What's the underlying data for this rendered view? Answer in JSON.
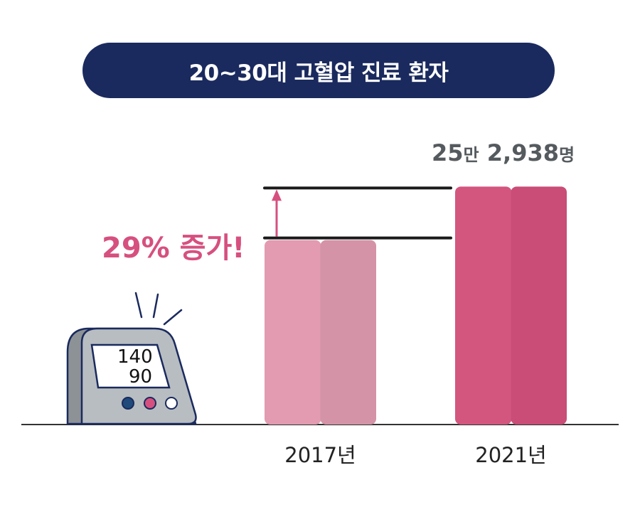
{
  "title": "20~30대 고혈압 진료 환자",
  "increase_label": "29% 증가!",
  "value_label": {
    "main_a": "25",
    "unit_a": "만",
    "main_b": " 2,938",
    "unit_b": "명"
  },
  "monitor": {
    "systolic": "140",
    "diastolic": "90",
    "icon": "blood-pressure-monitor-icon"
  },
  "colors": {
    "pill": "#1a2a5e",
    "bar_2017": "#e09aae",
    "bar_2021": "#d0527f",
    "accent": "#d6507f",
    "value_text": "#555a5e"
  },
  "chart_data": {
    "type": "bar",
    "categories": [
      "2017년",
      "2021년"
    ],
    "values": [
      196000,
      252938
    ],
    "ylim": [
      0,
      260000
    ],
    "annotations": [
      "25만 2,938명",
      "29% 증가!"
    ]
  }
}
